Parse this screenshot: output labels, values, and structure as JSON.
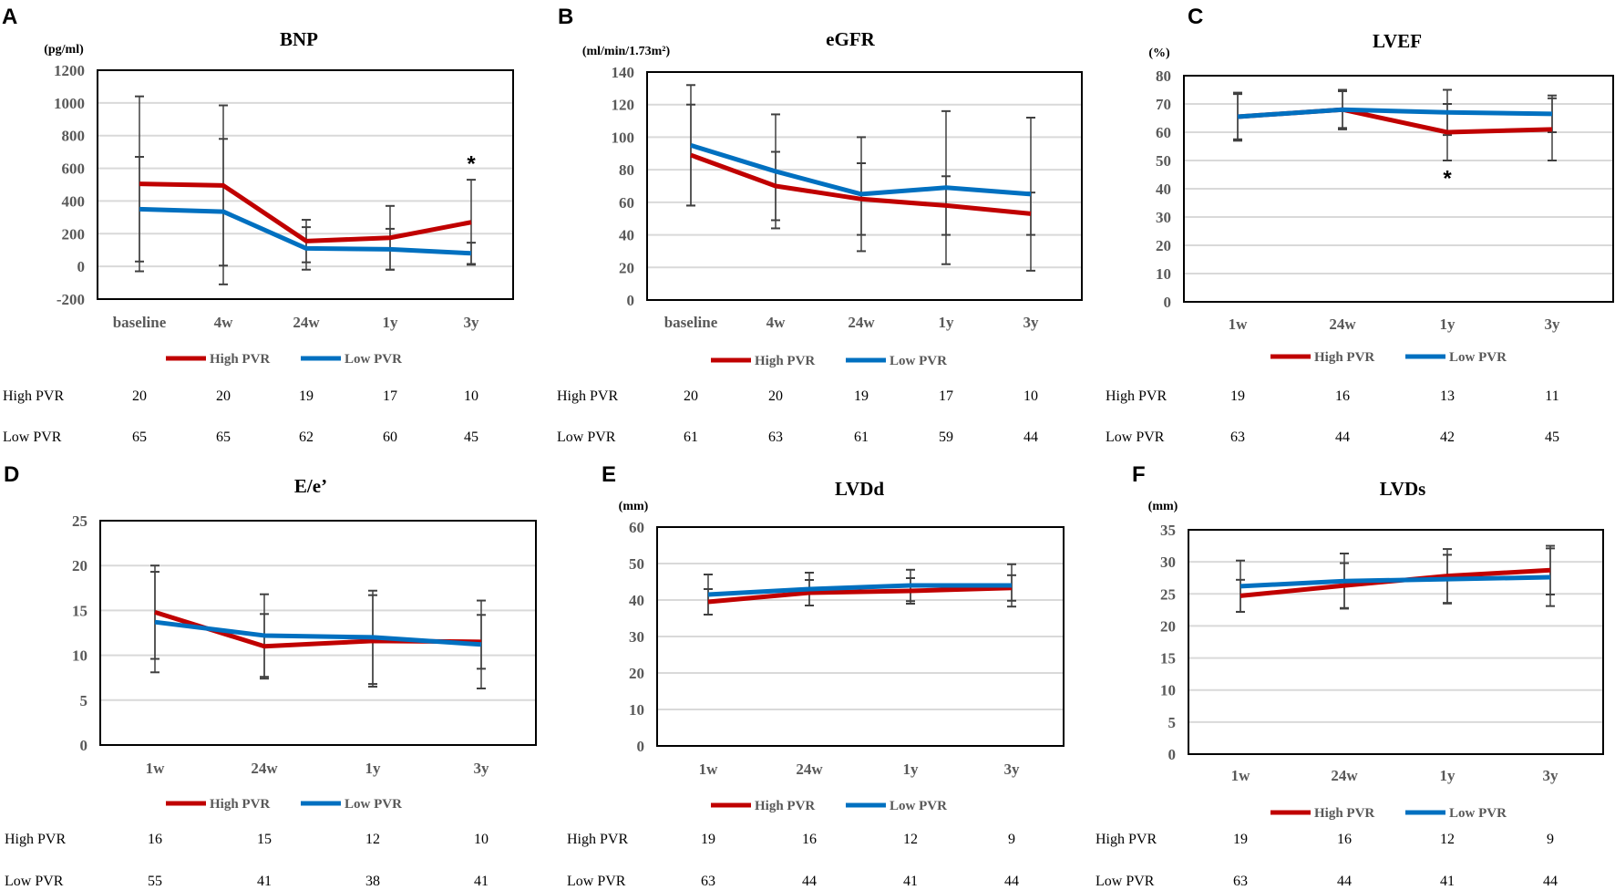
{
  "colors": {
    "high_pvr": "#c00000",
    "low_pvr": "#0070c0",
    "error_bar": "#404040",
    "grid": "#d9d9d9"
  },
  "chart_data": [
    {
      "panel": "A",
      "type": "line",
      "title": "BNP",
      "ylabel": "(pg/ml)",
      "categories": [
        "baseline",
        "4w",
        "24w",
        "1y",
        "3y"
      ],
      "ylim": [
        -200,
        1200
      ],
      "yticks": [
        "-200",
        "0",
        "200",
        "400",
        "600",
        "800",
        "1000",
        "1200"
      ],
      "grid": true,
      "legend": "bottom",
      "series": [
        {
          "name": "High PVR",
          "values": [
            505,
            495,
            155,
            175,
            270
          ],
          "sd": [
            535,
            490,
            130,
            195,
            260
          ]
        },
        {
          "name": "Low PVR",
          "values": [
            350,
            335,
            110,
            105,
            80
          ],
          "sd": [
            320,
            445,
            130,
            125,
            65
          ]
        }
      ],
      "annotations": [
        {
          "text": "*",
          "category": "3y",
          "value": 650
        }
      ],
      "n_table": [
        {
          "label": "High PVR",
          "values": [
            "20",
            "20",
            "19",
            "17",
            "10"
          ]
        },
        {
          "label": "Low PVR",
          "values": [
            "65",
            "65",
            "62",
            "60",
            "45"
          ]
        }
      ]
    },
    {
      "panel": "B",
      "type": "line",
      "title": "eGFR",
      "ylabel": "(ml/min/1.73m²)",
      "categories": [
        "baseline",
        "4w",
        "24w",
        "1y",
        "3y"
      ],
      "ylim": [
        0,
        140
      ],
      "yticks": [
        "0",
        "20",
        "40",
        "60",
        "80",
        "100",
        "120",
        "140"
      ],
      "grid": true,
      "legend": "bottom",
      "series": [
        {
          "name": "High PVR",
          "values": [
            89,
            70,
            62,
            58,
            53
          ],
          "sd": [
            31,
            21,
            22,
            18,
            13
          ]
        },
        {
          "name": "Low PVR",
          "values": [
            95,
            79,
            65,
            69,
            65
          ],
          "sd": [
            37,
            35,
            35,
            47,
            47
          ]
        }
      ],
      "annotations": [],
      "n_table": [
        {
          "label": "High PVR",
          "values": [
            "20",
            "20",
            "19",
            "17",
            "10"
          ]
        },
        {
          "label": "Low PVR",
          "values": [
            "61",
            "63",
            "61",
            "59",
            "44"
          ]
        }
      ]
    },
    {
      "panel": "C",
      "type": "line",
      "title": "LVEF",
      "ylabel": "(%)",
      "categories": [
        "1w",
        "24w",
        "1y",
        "3y"
      ],
      "ylim": [
        0,
        80
      ],
      "yticks": [
        "0",
        "10",
        "20",
        "30",
        "40",
        "50",
        "60",
        "70",
        "80"
      ],
      "grid": true,
      "legend": "bottom",
      "series": [
        {
          "name": "High PVR",
          "values": [
            65.5,
            68,
            60,
            61
          ],
          "sd": [
            8.5,
            7,
            10,
            11
          ]
        },
        {
          "name": "Low PVR",
          "values": [
            65.5,
            68,
            67,
            66.5
          ],
          "sd": [
            8,
            6.5,
            8,
            6.5
          ]
        }
      ],
      "annotations": [
        {
          "text": "*",
          "category": "1y",
          "value": 45
        }
      ],
      "n_table": [
        {
          "label": "High PVR",
          "values": [
            "19",
            "16",
            "13",
            "11"
          ]
        },
        {
          "label": "Low PVR",
          "values": [
            "63",
            "44",
            "42",
            "45"
          ]
        }
      ]
    },
    {
      "panel": "D",
      "type": "line",
      "title": "E/e’",
      "ylabel": "",
      "categories": [
        "1w",
        "24w",
        "1y",
        "3y"
      ],
      "ylim": [
        0,
        25
      ],
      "yticks": [
        "0",
        "5",
        "10",
        "15",
        "20",
        "25"
      ],
      "grid": true,
      "legend": "bottom",
      "series": [
        {
          "name": "High PVR",
          "values": [
            14.8,
            11,
            11.6,
            11.5
          ],
          "sd": [
            5.2,
            3.6,
            5.1,
            3.0
          ]
        },
        {
          "name": "Low PVR",
          "values": [
            13.7,
            12.2,
            12,
            11.2
          ],
          "sd": [
            5.6,
            4.6,
            5.2,
            4.9
          ]
        }
      ],
      "annotations": [],
      "n_table": [
        {
          "label": "High PVR",
          "values": [
            "16",
            "15",
            "12",
            "10"
          ]
        },
        {
          "label": "Low PVR",
          "values": [
            "55",
            "41",
            "38",
            "41"
          ]
        }
      ]
    },
    {
      "panel": "E",
      "type": "line",
      "title": "LVDd",
      "ylabel": "(mm)",
      "categories": [
        "1w",
        "24w",
        "1y",
        "3y"
      ],
      "ylim": [
        0,
        60
      ],
      "yticks": [
        "0",
        "10",
        "20",
        "30",
        "40",
        "50",
        "60"
      ],
      "grid": true,
      "legend": "bottom",
      "series": [
        {
          "name": "High PVR",
          "values": [
            39.5,
            42,
            42.5,
            43.3
          ],
          "sd": [
            3.5,
            3.5,
            3.5,
            3.5
          ]
        },
        {
          "name": "Low PVR",
          "values": [
            41.5,
            43,
            44,
            44
          ],
          "sd": [
            5.5,
            4.5,
            4.3,
            5.8
          ]
        }
      ],
      "annotations": [],
      "n_table": [
        {
          "label": "High PVR",
          "values": [
            "19",
            "16",
            "12",
            "9"
          ]
        },
        {
          "label": "Low PVR",
          "values": [
            "63",
            "44",
            "41",
            "44"
          ]
        }
      ]
    },
    {
      "panel": "F",
      "type": "line",
      "title": "LVDs",
      "ylabel": "(mm)",
      "categories": [
        "1w",
        "24w",
        "1y",
        "3y"
      ],
      "ylim": [
        0,
        35
      ],
      "yticks": [
        "0",
        "5",
        "10",
        "15",
        "20",
        "25",
        "30",
        "35"
      ],
      "grid": true,
      "legend": "bottom",
      "series": [
        {
          "name": "High PVR",
          "values": [
            24.7,
            26.3,
            27.8,
            28.7
          ],
          "sd": [
            2.5,
            3.5,
            4.2,
            3.8
          ]
        },
        {
          "name": "Low PVR",
          "values": [
            26.2,
            27,
            27.3,
            27.6
          ],
          "sd": [
            4,
            4.3,
            3.8,
            4.5
          ]
        }
      ],
      "annotations": [],
      "n_table": [
        {
          "label": "High PVR",
          "values": [
            "19",
            "16",
            "12",
            "9"
          ]
        },
        {
          "label": "Low PVR",
          "values": [
            "63",
            "44",
            "41",
            "44"
          ]
        }
      ]
    }
  ]
}
